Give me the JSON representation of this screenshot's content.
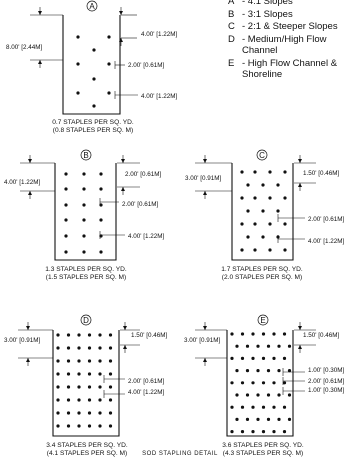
{
  "legend": [
    {
      "letter": "A",
      "text": "- 4:1 Slopes"
    },
    {
      "letter": "B",
      "text": "- 3:1 Slopes"
    },
    {
      "letter": "C",
      "text": "- 2:1 & Steeper Slopes"
    },
    {
      "letter": "D",
      "text": "- Medium/High Flow Channel"
    },
    {
      "letter": "E",
      "text": "- High Flow Channel & Shoreline"
    }
  ],
  "patterns": [
    {
      "id": "A",
      "height_dim": "8.00' [2.44M]",
      "top_dim": "4.00' [1.22M]",
      "inner_dims": [
        "2.00' [0.61M]",
        "4.00' [1.22M]"
      ],
      "caption": [
        "0.7  STAPLES PER SQ. YD.",
        "(0.8 STAPLES PER SQ. M)"
      ]
    },
    {
      "id": "B",
      "height_dim": "4.00' [1.22M]",
      "top_dim": "2.00' [0.61M]",
      "inner_dims": [
        "2.00' [0.61M]",
        "4.00' [1.22M]"
      ],
      "caption": [
        "1.3  STAPLES PER SQ. YD.",
        "(1.5 STAPLES PER SQ. M)"
      ]
    },
    {
      "id": "C",
      "height_dim": "3.00' [0.91M]",
      "top_dim": "1.50' [0.46M]",
      "inner_dims": [
        "2.00' [0.61M]",
        "4.00' [1.22M]"
      ],
      "caption": [
        "1.7  STAPLES PER SQ. YD.",
        "(2.0 STAPLES PER SQ. M)"
      ]
    },
    {
      "id": "D",
      "height_dim": "3.00' [0.91M]",
      "top_dim": "1.50' [0.46M]",
      "inner_dims": [
        "2.00' [0.61M]",
        "4.00' [1.22M]"
      ],
      "caption": [
        "3.4  STAPLES PER SQ. YD.",
        "(4.1 STAPLES PER SQ. M)"
      ]
    },
    {
      "id": "E",
      "height_dim": "3.00' [0.91M]",
      "top_dim": "1.50' [0.46M]",
      "inner_dims": [
        "1.00' [0.30M]",
        "2.00' [0.61M]",
        "1.00' [0.30M]"
      ],
      "caption": [
        "3.6  STAPLES PER SQ. YD.",
        "(4.3 STAPLES PER SQ. M)"
      ]
    }
  ],
  "footer": "SOD STAPLING DETAIL"
}
